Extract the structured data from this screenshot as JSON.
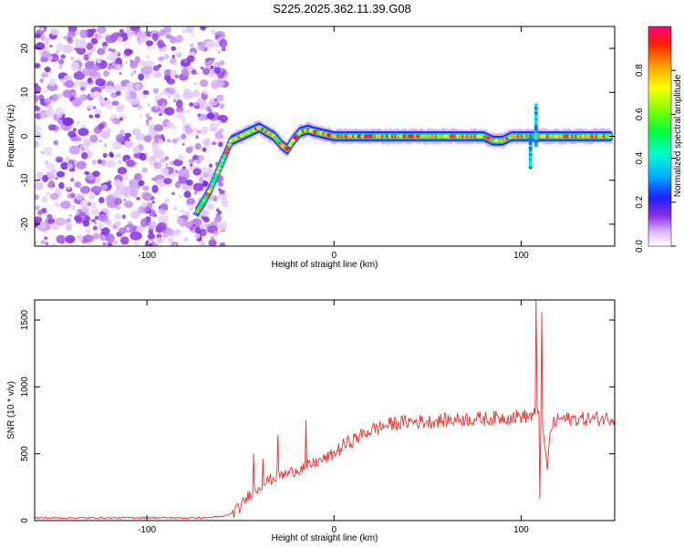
{
  "figure_title": "S225.2025.362.11.39.G08",
  "colors": {
    "trace": "#e8302a",
    "axis": "#000000"
  },
  "chart_data": [
    {
      "type": "heatmap",
      "title": "",
      "xlabel": "Height of straight line (km)",
      "ylabel": "Frequency (Hz)",
      "xlim": [
        -160,
        150
      ],
      "ylim": [
        -25,
        25
      ],
      "xticks": [
        -100,
        0,
        100
      ],
      "xtick_labels": [
        "-100",
        "0",
        "100"
      ],
      "yticks": [
        -20,
        -10,
        0,
        10,
        20
      ],
      "ytick_labels": [
        "-20",
        "-10",
        "0",
        "10",
        "20"
      ],
      "colorbar": {
        "label": "Normalized spectral amplitude",
        "range": [
          0.0,
          1.0
        ],
        "ticks": [
          0.0,
          0.2,
          0.4,
          0.6,
          0.8
        ],
        "tick_labels": [
          "0.0",
          "0.2",
          "0.4",
          "0.6",
          "0.8"
        ]
      },
      "noise_region": {
        "x": [
          -160,
          -62
        ],
        "amplitude": "low-0.3"
      },
      "signal_track": {
        "x": [
          -73,
          -70,
          -66,
          -62,
          -58,
          -55,
          -50,
          -45,
          -40,
          -36,
          -32,
          -28,
          -25,
          -22,
          -18,
          -14,
          -10,
          -5,
          0,
          5,
          10,
          20,
          30,
          40,
          50,
          60,
          70,
          80,
          85,
          90,
          95,
          100,
          105,
          108,
          112,
          120,
          130,
          140,
          148
        ],
        "freq": [
          -17,
          -15,
          -12,
          -8,
          -4,
          -1,
          0,
          1,
          2,
          1,
          0,
          -2,
          -3,
          -1,
          1,
          1.5,
          1,
          0.5,
          0,
          0,
          0,
          0,
          0,
          0,
          0,
          0,
          0,
          0,
          -1,
          -1,
          0,
          0,
          0,
          0,
          0,
          0,
          0,
          0,
          0
        ]
      },
      "annotations": [
        {
          "x": 108,
          "freq_range": [
            -2,
            7
          ],
          "note": "vertical streak"
        },
        {
          "x": 105,
          "freq_range": [
            -7,
            0
          ],
          "note": "vertical streak"
        }
      ]
    },
    {
      "type": "line",
      "title": "",
      "xlabel": "Height of straight line (km)",
      "ylabel": "SNR (10 * v/v)",
      "xlim": [
        -160,
        150
      ],
      "ylim": [
        0,
        1650
      ],
      "xticks": [
        -100,
        0,
        100
      ],
      "xtick_labels": [
        "-100",
        "0",
        "100"
      ],
      "yticks": [
        0,
        500,
        1000,
        1500
      ],
      "ytick_labels": [
        "0",
        "500",
        "1000",
        "1500"
      ],
      "series": [
        {
          "name": "SNR",
          "x": [
            -160,
            -140,
            -120,
            -100,
            -80,
            -70,
            -60,
            -55,
            -50,
            -45,
            -40,
            -35,
            -30,
            -25,
            -20,
            -15,
            -10,
            -5,
            0,
            5,
            10,
            15,
            20,
            25,
            30,
            40,
            50,
            60,
            70,
            80,
            90,
            100,
            105,
            108,
            110,
            112,
            114,
            116,
            120,
            130,
            140,
            150
          ],
          "y": [
            20,
            20,
            20,
            22,
            20,
            20,
            30,
            50,
            100,
            200,
            250,
            300,
            330,
            350,
            380,
            400,
            430,
            460,
            500,
            560,
            600,
            640,
            680,
            700,
            720,
            740,
            740,
            750,
            760,
            760,
            770,
            780,
            780,
            800,
            850,
            600,
            400,
            700,
            760,
            760,
            760,
            770
          ]
        }
      ],
      "spikes": [
        {
          "x": -43,
          "y": 500
        },
        {
          "x": -38,
          "y": 460
        },
        {
          "x": -30,
          "y": 640
        },
        {
          "x": -15,
          "y": 750
        },
        {
          "x": 108,
          "y": 1650
        },
        {
          "x": 111,
          "y": 1560
        },
        {
          "x": 110,
          "y": 160
        }
      ]
    }
  ]
}
